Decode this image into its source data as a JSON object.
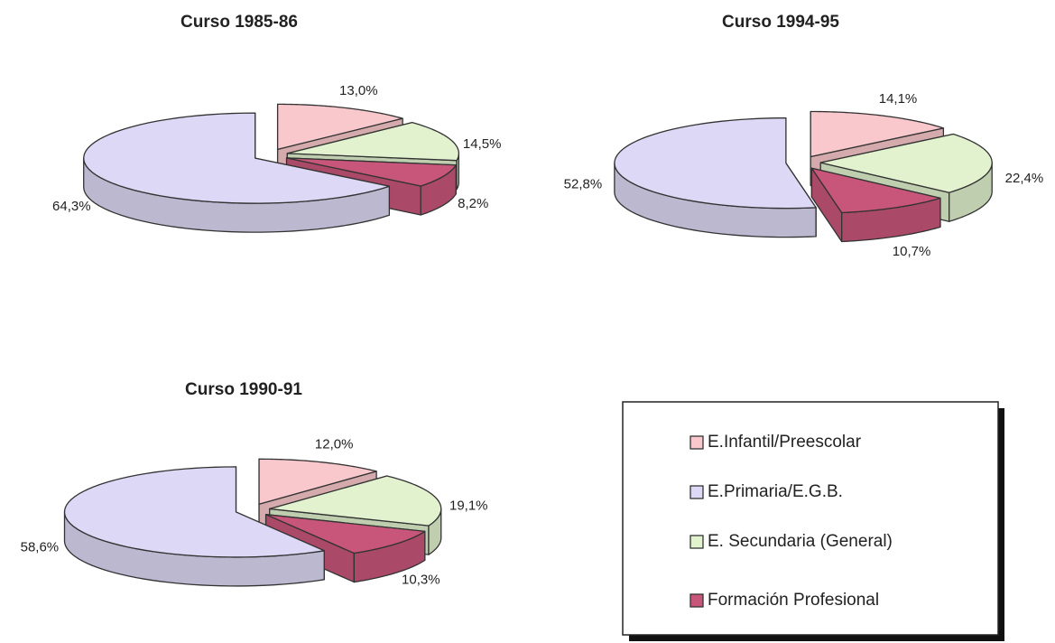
{
  "chart_data": [
    {
      "type": "pie",
      "title": "Curso 1985-86",
      "categories": [
        "E.Infantil/Preescolar",
        "E.Primaria/E.G.B.",
        "E. Secundaria (General)",
        "Formación Profesional"
      ],
      "values": [
        13.0,
        64.3,
        14.5,
        8.2
      ],
      "value_labels": [
        "13,0%",
        "64,3%",
        "14,5%",
        "8,2%"
      ],
      "colors": [
        "#f9c8cc",
        "#ddd8f5",
        "#e2f2cf",
        "#c8567a"
      ]
    },
    {
      "type": "pie",
      "title": "Curso 1994-95",
      "categories": [
        "E.Infantil/Preescolar",
        "E.Primaria/E.G.B.",
        "E. Secundaria (General)",
        "Formación Profesional"
      ],
      "values": [
        14.1,
        52.8,
        22.4,
        10.7
      ],
      "value_labels": [
        "14,1%",
        "52,8%",
        "22,4%",
        "10,7%"
      ],
      "colors": [
        "#f9c8cc",
        "#ddd8f5",
        "#e2f2cf",
        "#c8567a"
      ]
    },
    {
      "type": "pie",
      "title": "Curso 1990-91",
      "categories": [
        "E.Infantil/Preescolar",
        "E.Primaria/E.G.B.",
        "E. Secundaria (General)",
        "Formación Profesional"
      ],
      "values": [
        12.0,
        58.6,
        19.1,
        10.3
      ],
      "value_labels": [
        "12,0%",
        "58,6%",
        "19,1%",
        "10,3%"
      ],
      "colors": [
        "#f9c8cc",
        "#ddd8f5",
        "#e2f2cf",
        "#c8567a"
      ]
    }
  ]
}
